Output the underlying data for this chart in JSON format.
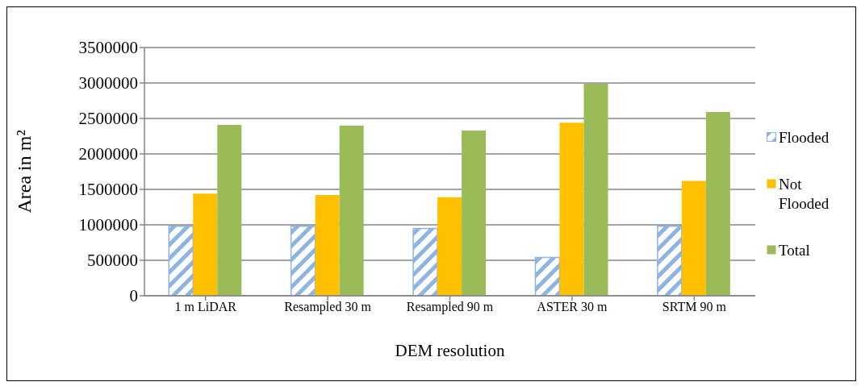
{
  "chart_data": {
    "type": "bar",
    "xlabel": "DEM resolution",
    "ylabel": "Area in m²",
    "categories": [
      "1 m LiDAR",
      "Resampled 30 m",
      "Resampled 90 m",
      "ASTER 30 m",
      "SRTM 90 m"
    ],
    "series": [
      {
        "name": "Flooded",
        "color": "#8db4e2",
        "values": [
          980000,
          980000,
          950000,
          540000,
          980000
        ]
      },
      {
        "name": "Not Flooded",
        "color": "#ffc000",
        "values": [
          1440000,
          1420000,
          1390000,
          2440000,
          1620000
        ]
      },
      {
        "name": "Total",
        "color": "#9bbb59",
        "values": [
          2410000,
          2400000,
          2330000,
          2990000,
          2590000
        ]
      }
    ],
    "ylim": [
      0,
      3500000
    ],
    "yticks": [
      0,
      500000,
      1000000,
      1500000,
      2000000,
      2500000,
      3000000,
      3500000
    ],
    "grid": "y",
    "legend": "right"
  }
}
